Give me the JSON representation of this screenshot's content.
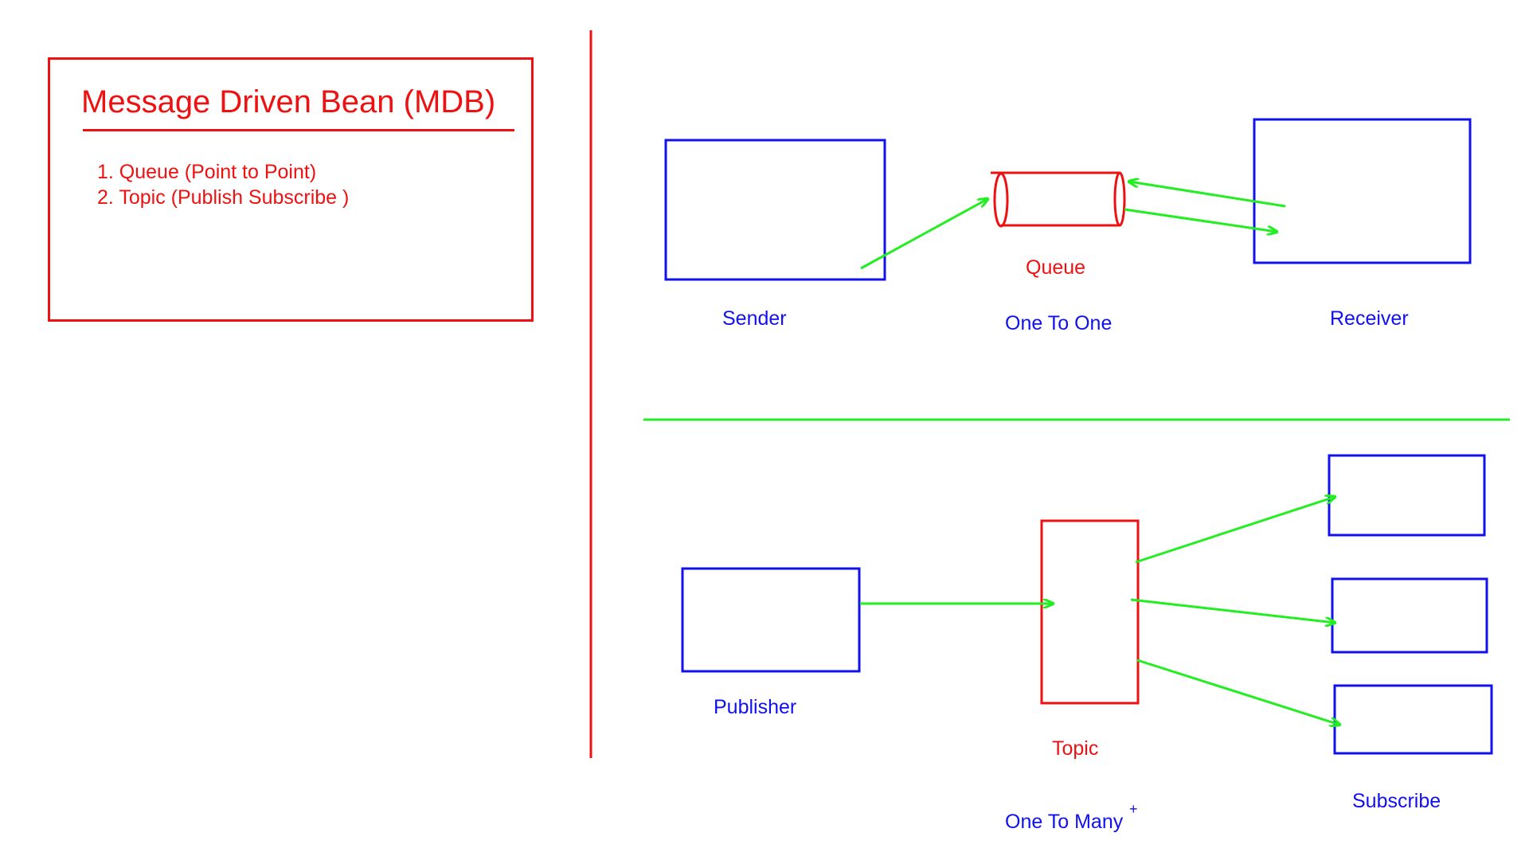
{
  "panel": {
    "title": "Message Driven Bean (MDB)",
    "items": [
      "1. Queue (Point to Point)",
      "2. Topic (Publish Subscribe )"
    ]
  },
  "queue_section": {
    "sender_label": "Sender",
    "queue_label": "Queue",
    "mode_label": "One To One",
    "receiver_label": "Receiver"
  },
  "topic_section": {
    "publisher_label": "Publisher",
    "topic_label": "Topic",
    "mode_label": "One To Many",
    "mode_mark": "+",
    "subscriber_label": "Subscribe"
  },
  "colors": {
    "red": "#ee1111",
    "blue": "#1111ee",
    "green": "#22ee22"
  }
}
